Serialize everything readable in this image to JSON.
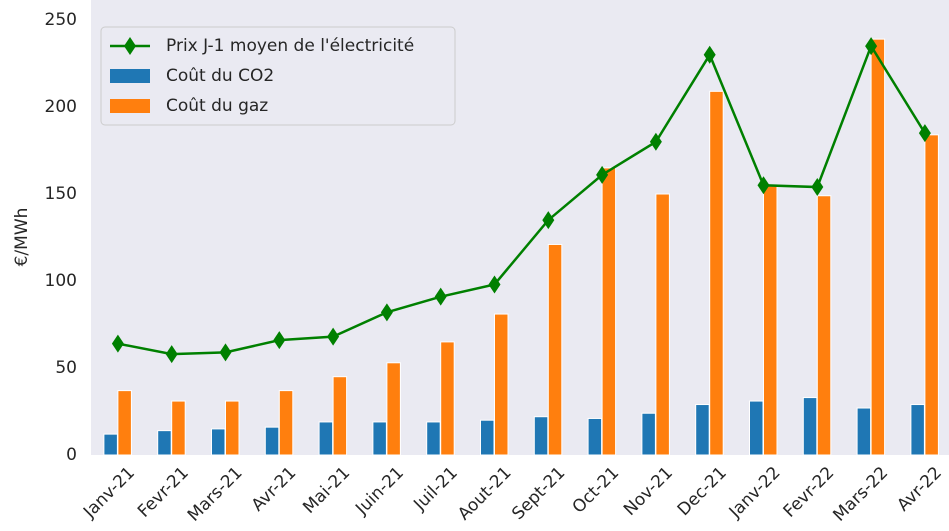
{
  "chart_data": {
    "type": "bar_line",
    "ylabel": "€/MWh",
    "categories": [
      "Janv-21",
      "Fevr-21",
      "Mars-21",
      "Avr-21",
      "Mai-21",
      "Juin-21",
      "Juil-21",
      "Aout-21",
      "Sept-21",
      "Oct-21",
      "Nov-21",
      "Dec-21",
      "Janv-22",
      "Fevr-22",
      "Mars-22",
      "Avr-22"
    ],
    "series": [
      {
        "name": "Prix J-1 moyen de l'électricité",
        "kind": "line",
        "color": "#008000",
        "values": [
          64,
          58,
          59,
          66,
          68,
          82,
          91,
          98,
          135,
          161,
          180,
          230,
          155,
          154,
          235,
          185
        ]
      },
      {
        "name": "Coût du CO2",
        "kind": "bar",
        "color": "#1f77b4",
        "values": [
          12,
          14,
          15,
          16,
          19,
          19,
          19,
          20,
          22,
          21,
          24,
          29,
          31,
          33,
          27,
          29
        ]
      },
      {
        "name": "Coût du gaz",
        "kind": "bar",
        "color": "#ff7f0e",
        "values": [
          37,
          31,
          31,
          37,
          45,
          53,
          65,
          81,
          121,
          165,
          150,
          209,
          155,
          149,
          239,
          184
        ]
      }
    ],
    "ylim": [
      0,
      250
    ],
    "yticks": [
      0,
      50,
      100,
      150,
      200,
      250
    ],
    "grid": false,
    "legend": "upper left"
  }
}
